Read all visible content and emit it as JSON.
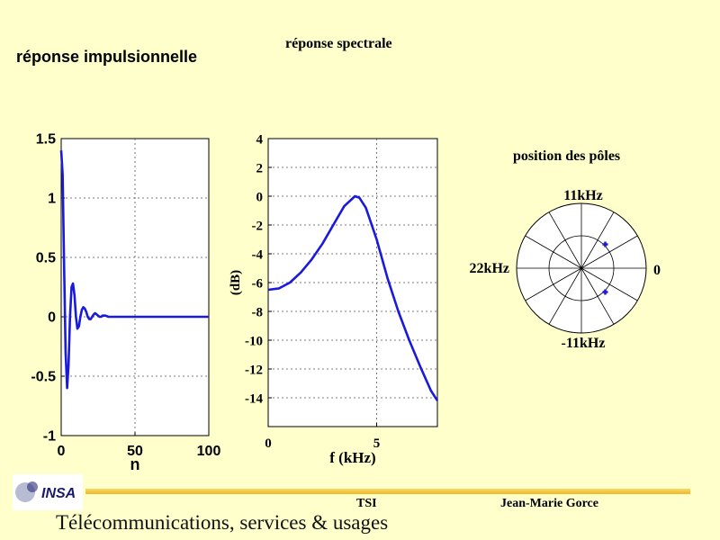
{
  "slide": {
    "impulse_title": "réponse impulsionnelle",
    "spectral_title": "réponse spectrale",
    "poles_title": "position des pôles",
    "footer_course": "TSI",
    "footer_author": "Jean-Marie Gorce",
    "footer_subtitle": "Télécommunications, services & usages",
    "logo_text": "INSA",
    "colors": {
      "background": "#ffffcc",
      "curve": "#1a1adc",
      "footer_bar": "#f5c842"
    }
  },
  "chart_data": [
    {
      "type": "line",
      "title": "réponse impulsionnelle",
      "xlabel": "n",
      "ylabel": "",
      "xlim": [
        0,
        100
      ],
      "ylim": [
        -1,
        1.5
      ],
      "xticks": [
        0,
        50,
        100
      ],
      "xtick_labels": [
        "0",
        "50",
        "100"
      ],
      "yticks": [
        1.5,
        1,
        0.5,
        0,
        -0.5,
        -1
      ],
      "ytick_labels": [
        "1.5",
        "1",
        "0.5",
        "0",
        "-0.5",
        "-1"
      ],
      "grid": true,
      "series": [
        {
          "x": [
            0,
            1,
            2,
            3,
            4,
            5,
            6,
            7,
            8,
            9,
            10,
            11,
            12,
            13,
            14,
            15,
            16,
            17,
            18,
            19,
            20,
            21,
            22,
            23,
            24,
            25,
            26,
            27,
            28,
            29,
            30,
            32,
            35,
            40,
            50,
            60,
            70,
            80,
            90,
            100
          ],
          "values": [
            1.4,
            1.2,
            0.4,
            -0.3,
            -0.6,
            -0.4,
            0.0,
            0.25,
            0.28,
            0.18,
            0.0,
            -0.1,
            -0.08,
            0.0,
            0.06,
            0.08,
            0.07,
            0.04,
            0.0,
            -0.02,
            -0.02,
            0.0,
            0.02,
            0.03,
            0.02,
            0.01,
            0.0,
            0.0,
            0.01,
            0.01,
            0.01,
            0.0,
            0.0,
            0.0,
            0.0,
            0.0,
            0.0,
            0.0,
            0.0,
            0.0
          ]
        }
      ]
    },
    {
      "type": "line",
      "title": "réponse spectrale",
      "xlabel": "f (kHz)",
      "ylabel": "(dB)",
      "xlim": [
        0,
        7.8
      ],
      "ylim": [
        -16,
        4
      ],
      "xticks": [
        0,
        5
      ],
      "xtick_labels": [
        "0",
        "5"
      ],
      "yticks": [
        4,
        2,
        0,
        -2,
        -4,
        -6,
        -8,
        -10,
        -12,
        -14
      ],
      "ytick_labels": [
        "4",
        "2",
        "0",
        "-2",
        "-4",
        "-6",
        "-8",
        "-10",
        "-12",
        "-14"
      ],
      "grid": true,
      "series": [
        {
          "x": [
            0,
            0.5,
            1,
            1.5,
            2,
            2.5,
            3,
            3.5,
            4,
            4.2,
            4.5,
            5,
            5.5,
            6,
            6.5,
            7,
            7.5,
            7.8
          ],
          "values": [
            -6.5,
            -6.4,
            -6.0,
            -5.3,
            -4.4,
            -3.3,
            -2.0,
            -0.7,
            0.0,
            -0.1,
            -0.8,
            -3.0,
            -5.7,
            -8.0,
            -10.0,
            -11.8,
            -13.5,
            -14.2
          ]
        }
      ]
    },
    {
      "type": "scatter",
      "title": "position des pôles",
      "xlabel": "",
      "ylabel": "",
      "labels": {
        "top": "11kHz",
        "bottom": "-11kHz",
        "left": "22kHz",
        "right": "0"
      },
      "radial_rings": [
        0.5,
        1.0
      ],
      "spokes_deg": [
        0,
        30,
        60,
        90,
        120,
        150,
        180,
        210,
        240,
        270,
        300,
        330
      ],
      "poles": [
        {
          "radius": 0.52,
          "angle_deg": 45
        },
        {
          "radius": 0.52,
          "angle_deg": -45
        }
      ]
    }
  ]
}
